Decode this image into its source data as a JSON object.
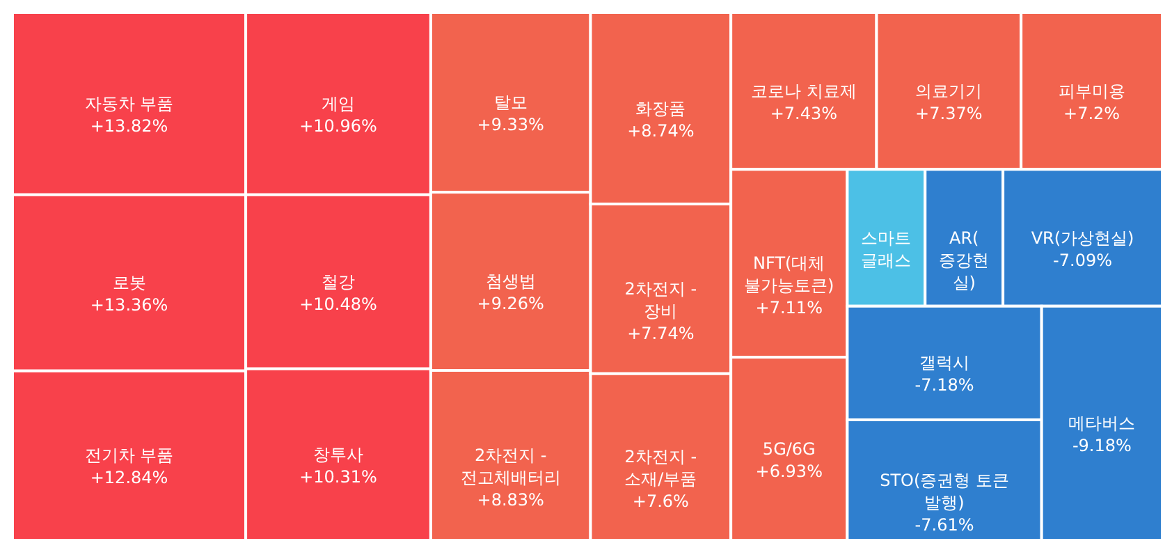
{
  "chart_data": {
    "type": "other",
    "categories": [
      "자동차 부품",
      "로봇",
      "전기차 부품",
      "게임",
      "철강",
      "창투사",
      "탈모",
      "첨생법",
      "2차전지 - 전고체배터리",
      "화장품",
      "2차전지 - 장비",
      "2차전지 - 소재/부품",
      "코로나 치료제",
      "의료기기",
      "피부미용",
      "NFT(대체불가능토큰)",
      "5G/6G",
      "스마트 글래스",
      "AR(증강현실)",
      "VR(가상현실)",
      "갤럭시",
      "STO(증권형 토큰 발행)",
      "메타버스"
    ],
    "values": [
      13.82,
      13.36,
      12.84,
      10.96,
      10.48,
      10.31,
      9.33,
      9.26,
      8.83,
      8.74,
      7.74,
      7.6,
      7.43,
      7.37,
      7.2,
      7.11,
      6.93,
      null,
      null,
      -7.09,
      -7.18,
      -7.61,
      -9.18
    ],
    "value_labels": [
      "+13.82%",
      "+13.36%",
      "+12.84%",
      "+10.96%",
      "+10.48%",
      "+10.31%",
      "+9.33%",
      "+9.26%",
      "+8.83%",
      "+8.74%",
      "+7.74%",
      "+7.6%",
      "+7.43%",
      "+7.37%",
      "+7.2%",
      "+7.11%",
      "+6.93%",
      null,
      null,
      "-7.09%",
      "-7.18%",
      "-7.61%",
      "-9.18%"
    ],
    "colors": [
      "#f8414b",
      "#f8414b",
      "#f8414b",
      "#f8414b",
      "#f8414b",
      "#f8414b",
      "#f2634e",
      "#f2634e",
      "#f2634e",
      "#f2634e",
      "#f2634e",
      "#f2634e",
      "#f2634e",
      "#f2634e",
      "#f2634e",
      "#f2634e",
      "#f2634e",
      "#4cc0e6",
      "#2f7fcf",
      "#2f7fcf",
      "#2f7fcf",
      "#2f7fcf",
      "#2f7fcf"
    ]
  }
}
